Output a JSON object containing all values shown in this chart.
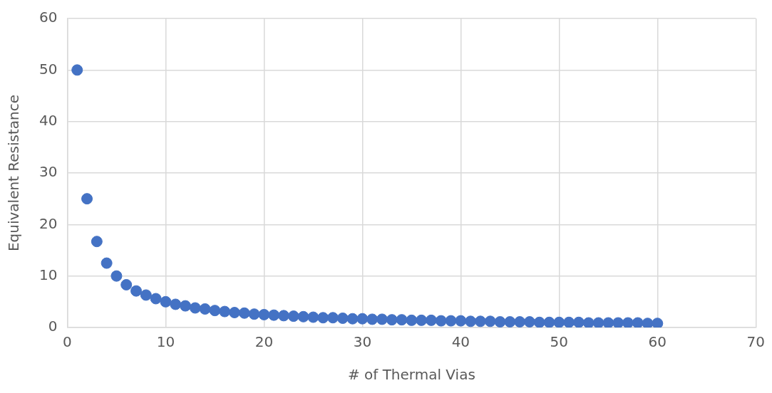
{
  "chart_data": {
    "type": "scatter",
    "xlabel": "# of Thermal Vias",
    "ylabel": "Equivalent Resistance",
    "x": [
      1,
      2,
      3,
      4,
      5,
      6,
      7,
      8,
      9,
      10,
      11,
      12,
      13,
      14,
      15,
      16,
      17,
      18,
      19,
      20,
      21,
      22,
      23,
      24,
      25,
      26,
      27,
      28,
      29,
      30,
      31,
      32,
      33,
      34,
      35,
      36,
      37,
      38,
      39,
      40,
      41,
      42,
      43,
      44,
      45,
      46,
      47,
      48,
      49,
      50,
      51,
      52,
      53,
      54,
      55,
      56,
      57,
      58,
      59,
      60
    ],
    "series": [
      {
        "color": "#4472c4",
        "values": [
          50,
          25,
          16.7,
          12.5,
          10,
          8.3,
          7.1,
          6.3,
          5.6,
          5,
          4.5,
          4.2,
          3.8,
          3.6,
          3.3,
          3.1,
          2.9,
          2.8,
          2.6,
          2.5,
          2.4,
          2.3,
          2.2,
          2.1,
          2,
          1.9,
          1.9,
          1.8,
          1.7,
          1.7,
          1.6,
          1.6,
          1.5,
          1.5,
          1.4,
          1.4,
          1.4,
          1.3,
          1.3,
          1.3,
          1.2,
          1.2,
          1.2,
          1.1,
          1.1,
          1.1,
          1.1,
          1,
          1,
          1,
          1,
          1,
          0.9,
          0.9,
          0.9,
          0.9,
          0.9,
          0.9,
          0.8,
          0.8
        ]
      }
    ],
    "xlim": [
      0,
      70
    ],
    "xticks": [
      0,
      10,
      20,
      30,
      40,
      50,
      60,
      70
    ],
    "ylim": [
      0,
      60
    ],
    "yticks": [
      0,
      10,
      20,
      30,
      40,
      50,
      60
    ],
    "grid": true,
    "legend": false,
    "marker": "circle"
  }
}
